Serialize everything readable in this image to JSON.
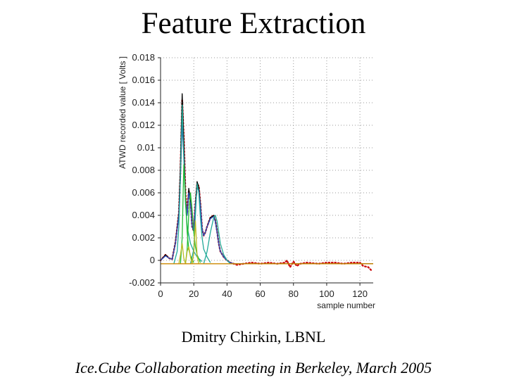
{
  "slide": {
    "title": "Feature Extraction",
    "author": "Dmitry Chirkin, LBNL",
    "footer": "Ice.Cube Collaboration meeting in Berkeley, March 2005"
  },
  "chart_data": {
    "type": "line",
    "title": "",
    "xlabel": "sample number",
    "ylabel": "ATWD recorded value [ Volts ]",
    "xlim": [
      0,
      128
    ],
    "ylim": [
      -0.002,
      0.018
    ],
    "xticks": [
      "0",
      "20",
      "40",
      "60",
      "80",
      "100",
      "120"
    ],
    "yticks": [
      "-0.002",
      "0",
      "0.002",
      "0.004",
      "0.006",
      "0.008",
      "0.01",
      "0.012",
      "0.014",
      "0.016",
      "0.018"
    ],
    "grid": true,
    "colors": {
      "data": "#cc1111",
      "fit": "#000000",
      "reconstruction": "#3050c0",
      "pulse_a": "#22aa99",
      "pulse_b": "#22bb33",
      "pulse_c": "#bbbb22",
      "baseline": "#cc8800"
    },
    "series": [
      {
        "style": "dotted",
        "color": "#cc1111",
        "x": [
          0,
          3,
          5,
          7,
          9,
          11,
          12,
          13,
          14,
          15,
          16,
          17,
          18,
          19,
          20,
          21,
          22,
          23,
          24,
          25,
          26,
          27,
          28,
          30,
          32,
          33,
          34,
          35,
          36,
          38,
          40,
          42,
          44,
          46,
          50,
          55,
          60,
          65,
          70,
          75,
          76,
          78,
          80,
          82,
          84,
          88,
          95,
          100,
          105,
          110,
          115,
          120,
          122,
          125,
          127
        ],
        "y": [
          0.0,
          0.0005,
          0.0002,
          0.0001,
          0.0016,
          0.0042,
          0.008,
          0.0143,
          0.011,
          0.006,
          0.0042,
          0.0062,
          0.0053,
          0.003,
          0.0026,
          0.005,
          0.0068,
          0.0066,
          0.005,
          0.0028,
          0.0022,
          0.0025,
          0.003,
          0.0038,
          0.004,
          0.0035,
          0.0026,
          0.0015,
          0.0008,
          0.0003,
          0.0,
          -0.0002,
          -0.0003,
          -0.0004,
          -0.0003,
          -0.0002,
          -0.0003,
          -0.0002,
          -0.0003,
          -0.0002,
          0.0,
          -0.0006,
          -0.0001,
          -0.0005,
          -0.0003,
          -0.0002,
          -0.0003,
          -0.0002,
          -0.0002,
          -0.0003,
          -0.0002,
          -0.0002,
          -0.0005,
          -0.0006,
          -0.0009
        ]
      },
      {
        "style": "solid",
        "color": "#000000",
        "x": [
          0,
          3,
          5,
          7,
          9,
          11,
          12,
          13,
          14,
          15,
          16,
          17,
          18,
          19,
          20,
          21,
          22,
          23,
          24,
          25,
          26,
          27,
          28,
          30,
          32,
          33,
          34,
          35,
          36,
          38,
          40,
          42,
          44,
          46,
          50,
          55,
          60,
          65,
          70,
          75,
          80,
          85,
          90,
          95,
          100,
          105,
          110,
          115,
          120,
          125,
          128
        ],
        "y": [
          0.0,
          0.0005,
          0.0002,
          0.0001,
          0.0016,
          0.0042,
          0.0085,
          0.0148,
          0.0105,
          0.0055,
          0.004,
          0.0064,
          0.0052,
          0.003,
          0.0026,
          0.005,
          0.007,
          0.0065,
          0.005,
          0.0028,
          0.0022,
          0.0025,
          0.003,
          0.0038,
          0.004,
          0.0035,
          0.0026,
          0.0015,
          0.0008,
          0.0003,
          0.0,
          -0.0002,
          -0.0003,
          -0.0003,
          -0.0003,
          -0.0003,
          -0.0003,
          -0.0003,
          -0.0003,
          -0.0003,
          -0.0003,
          -0.0003,
          -0.0003,
          -0.0003,
          -0.0003,
          -0.0003,
          -0.0003,
          -0.0003,
          -0.0003,
          -0.0003,
          -0.0003
        ]
      },
      {
        "style": "solid",
        "color": "#3050c0",
        "x": [
          0,
          3,
          5,
          7,
          9,
          11,
          12,
          13,
          14,
          15,
          16,
          17,
          18,
          19,
          20,
          21,
          22,
          23,
          24,
          25,
          26,
          27,
          28,
          30,
          32,
          33,
          34,
          35,
          36,
          38,
          40,
          42,
          44,
          46,
          50
        ],
        "y": [
          0.0,
          0.0004,
          0.0002,
          0.0001,
          0.0015,
          0.004,
          0.0075,
          0.012,
          0.0095,
          0.0055,
          0.004,
          0.006,
          0.005,
          0.003,
          0.0026,
          0.0048,
          0.0065,
          0.0062,
          0.0048,
          0.0028,
          0.0022,
          0.0025,
          0.003,
          0.0037,
          0.0039,
          0.0034,
          0.0025,
          0.0015,
          0.0008,
          0.0003,
          0.0,
          -0.0002,
          -0.0003,
          -0.0003,
          -0.0003
        ]
      },
      {
        "style": "solid",
        "color": "#22aa99",
        "x": [
          8,
          10,
          11,
          12,
          13,
          14,
          15,
          16,
          18,
          20,
          22,
          25
        ],
        "y": [
          -0.0003,
          0.0008,
          0.003,
          0.0075,
          0.0138,
          0.009,
          0.005,
          0.003,
          0.0015,
          0.0008,
          0.0003,
          -0.0001
        ]
      },
      {
        "style": "solid",
        "color": "#22aa99",
        "x": [
          18,
          20,
          21,
          22,
          23,
          24,
          25,
          26,
          28,
          30
        ],
        "y": [
          -0.0003,
          0.001,
          0.004,
          0.0068,
          0.006,
          0.0038,
          0.002,
          0.001,
          0.0003,
          -0.0002
        ]
      },
      {
        "style": "solid",
        "color": "#22aa99",
        "x": [
          26,
          28,
          30,
          32,
          33,
          34,
          35,
          36,
          38,
          40,
          42
        ],
        "y": [
          -0.0003,
          0.0008,
          0.0025,
          0.0038,
          0.004,
          0.0035,
          0.0025,
          0.0015,
          0.0005,
          0.0,
          -0.0003
        ]
      },
      {
        "style": "solid",
        "color": "#22bb33",
        "x": [
          12,
          13,
          14,
          15,
          16,
          17,
          18,
          19,
          20
        ],
        "y": [
          -0.0003,
          0.002,
          0.0085,
          0.0055,
          0.0025,
          0.001,
          0.0004,
          0.0001,
          -0.0002
        ]
      },
      {
        "style": "solid",
        "color": "#22bb33",
        "x": [
          15,
          16,
          17,
          18,
          19,
          20,
          21,
          22,
          24
        ],
        "y": [
          -0.0003,
          0.001,
          0.0042,
          0.006,
          0.0045,
          0.0025,
          0.0012,
          0.0005,
          -0.0002
        ]
      },
      {
        "style": "solid",
        "color": "#bbbb22",
        "x": [
          11,
          12,
          13,
          14,
          15
        ],
        "y": [
          -0.0003,
          0.0005,
          0.0015,
          0.0002,
          -0.0003
        ]
      },
      {
        "style": "solid",
        "color": "#bbbb22",
        "x": [
          15,
          16,
          17,
          18,
          19
        ],
        "y": [
          -0.0003,
          0.0008,
          0.0012,
          0.0003,
          -0.0003
        ]
      },
      {
        "style": "solid",
        "color": "#bbbb22",
        "x": [
          19,
          20,
          21,
          22,
          23
        ],
        "y": [
          -0.0003,
          0.0006,
          0.0035,
          0.0004,
          -0.0003
        ]
      },
      {
        "style": "solid",
        "color": "#cc8800",
        "x": [
          0,
          128
        ],
        "y": [
          -0.0003,
          -0.0003
        ]
      }
    ]
  }
}
